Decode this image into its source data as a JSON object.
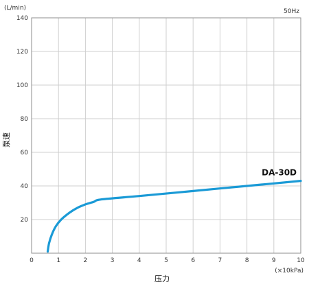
{
  "chart_data": {
    "type": "line",
    "xlabel": "压力",
    "ylabel": "泵速",
    "x_unit": "(×10kPa)",
    "y_unit": "(L/min)",
    "frequency": "50Hz",
    "xlim": [
      0,
      10
    ],
    "ylim": [
      0,
      140
    ],
    "xticks": [
      0,
      1,
      2,
      3,
      4,
      5,
      6,
      7,
      8,
      9,
      10
    ],
    "yticks": [
      20,
      40,
      60,
      80,
      100,
      120,
      140
    ],
    "grid": true,
    "line_color": "#1a9ad6",
    "series": [
      {
        "name": "DA-30D",
        "x": [
          0.6,
          0.65,
          0.75,
          0.9,
          1.1,
          1.4,
          1.7,
          2.0,
          2.3,
          2.6,
          4.0,
          6.0,
          8.0,
          10.0
        ],
        "y": [
          1,
          6,
          11,
          16,
          20,
          24,
          27,
          29,
          30.5,
          32,
          34,
          37,
          40,
          43
        ]
      }
    ]
  }
}
